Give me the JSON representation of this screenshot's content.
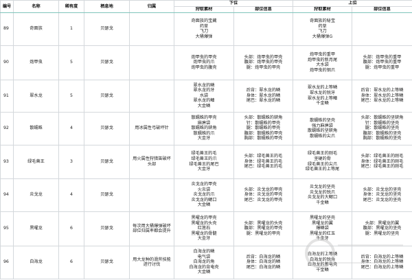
{
  "headers": {
    "id": "编号",
    "name": "名称",
    "rarity": "稀有度",
    "habitat": "栖息地",
    "note": "归属",
    "low_rank": "下位",
    "high_rank": "上位",
    "materials": "狩取素材",
    "parts": "部位信息"
  },
  "rows": [
    {
      "id": "89",
      "name": "奇面族",
      "rarity": "1",
      "habitat": "贝瑟戈",
      "note": "",
      "low_mat": [
        "奇面族的宝藏",
        "药草",
        "飞刀",
        "大桶爆弹"
      ],
      "low_parts": [],
      "high_mat": [
        "奇面族的秘宝",
        "药草",
        "飞刀",
        "大桶爆弹G"
      ],
      "high_parts": []
    },
    {
      "id": "90",
      "name": "炮甲虫",
      "rarity": "5",
      "habitat": "贝瑟戈",
      "note": "",
      "low_mat": [
        "炮甲虫的甲壳",
        "炮甲虫的爪",
        "炮甲虫的腹壳"
      ],
      "low_parts": [
        "头部：炮甲虫的甲壳",
        "腹部：炮甲虫的甲壳",
        "腿：炮甲虫的甲壳"
      ],
      "high_mat": [
        "炮甲虫的重甲",
        "炮甲虫的新月尾",
        "大水袋",
        "炮甲虫的钢爪"
      ],
      "high_parts": [
        "头部：炮甲虫的重甲",
        "腹部：炮甲虫的重甲",
        "腿：炮甲虫的重甲"
      ]
    },
    {
      "id": "91",
      "name": "翠水龙",
      "rarity": "5",
      "habitat": "贝瑟戈",
      "note": "",
      "low_mat": [
        "翠水龙的鳞",
        "翠水龙的牙",
        "水袋",
        "翠水龙的鳍",
        "大金鳞"
      ],
      "low_parts": [
        "后背：翠水龙的鳞",
        "身体：翠水龙的鳞",
        "尾巴：翠水龙的鳞"
      ],
      "high_mat": [
        "翠水龙的上等鳞",
        "翠水龙的锐牙",
        "翠水龙的上等鳍",
        "千金鳞"
      ],
      "high_parts": [
        "后背：翠水龙的上等鳞",
        "身体：翠水龙的上等鳞",
        "尾巴：翠水龙的上等鳞"
      ]
    },
    {
      "id": "92",
      "name": "散蠕蛛",
      "rarity": "4",
      "habitat": "贝瑟戈",
      "note": "用冰属性弓破坏针",
      "low_mat": [
        "散蠕蛛的甲壳",
        "麻痹袋",
        "散蠕蛛的鋏角",
        "散蠕蛛的爪",
        "大金牙"
      ],
      "low_parts": [
        "头部：散蠕蛛的鋏角",
        "针：散蠕蛛的甲壳",
        "腿：散蠕蛛的甲壳",
        "腹部：散蠕蛛的甲壳",
        "胸部：散蠕蛛的甲壳"
      ],
      "high_mat": [
        "散蠕蛛的坚壳",
        "强力麻痹袋",
        "散蠕蛛的坚鋏角",
        "散蠕蛛的尖爪"
      ],
      "high_parts": [
        "头部：散蠕蛛的坚鋏角",
        "针：散蠕蛛的坚壳",
        "腿：散蠕蛛的坚壳",
        "腹部：散蠕蛛的坚壳",
        "胸部：散蠕蛛的坚壳"
      ]
    },
    {
      "id": "93",
      "name": "绿毛兽王",
      "rarity": "3",
      "habitat": "贝瑟戈",
      "note": "用火属性狩猎笛破坏头部",
      "low_mat": [
        "绿毛兽王的毛",
        "绿毛兽王的爪",
        "绿毛兽王的尾巴",
        "大金牙"
      ],
      "low_parts": [
        "头部：绿毛兽王的毛",
        "身体：绿毛兽王的毛",
        "尾巴：绿毛兽王的毛"
      ],
      "high_mat": [
        "绿毛兽王的刚毛",
        "坚硬的骨",
        "绿毛兽王的尖爪",
        "绿毛兽王的上等尾"
      ],
      "high_parts": [
        "头部：绿毛兽王的刚毛",
        "身体：绿毛兽王的刚毛",
        "尾巴：绿毛兽王的刚毛"
      ]
    },
    {
      "id": "94",
      "name": "炎戈龙",
      "rarity": "4",
      "habitat": "贝瑟戈",
      "note": "",
      "low_mat": [
        "炎戈龙的甲壳",
        "火炎袋",
        "炎戈龙的爪",
        "炎戈龙的鳃口",
        "大金鳞"
      ],
      "low_parts": [
        "头部：炎戈龙的甲壳",
        "身体：炎戈龙的甲壳",
        "尾巴：炎戈龙的甲壳"
      ],
      "high_mat": [
        "炎戈龙的坚壳",
        "炎戈龙的锐爪",
        "炎戈龙的大鳃口",
        "千金鳞"
      ],
      "high_parts": [
        "头部：炎戈龙的坚壳",
        "身体：炎戈龙的坚壳",
        "尾巴：炎戈龙的坚壳"
      ]
    },
    {
      "id": "95",
      "name": "黑曜龙",
      "rarity": "6",
      "habitat": "贝瑟戈",
      "note": "每次用大桶爆弹破坏部位归属率都会提升",
      "low_mat": [
        "黑曜龙的甲壳",
        "黑曜龙的头壳",
        "红莲石",
        "黑曜龙的骨髓",
        "大金牙"
      ],
      "low_parts": [
        "头部：黑曜龙的头壳",
        "腹部：黑曜龙的甲壳",
        "腿：黑曜龙的甲壳"
      ],
      "high_mat": [
        "黑曜龙的坚壳",
        "黑曜龙的翼",
        "爆鳞袋",
        "黑曜龙的红玉",
        "千金牙"
      ],
      "high_parts": [
        "头部：黑曜龙的翼",
        "腹部：黑曜龙的坚壳",
        "腿：黑曜龙的坚壳"
      ]
    },
    {
      "id": "96",
      "name": "白海龙",
      "rarity": "6",
      "habitat": "贝瑟戈",
      "note": "用大龙种的滑斧技能进行讨伐",
      "low_mat": [
        "白海龙的鳞",
        "电气袋",
        "白海龙的角",
        "白海龙的背电壳",
        "大金鳞"
      ],
      "low_parts": [
        "后背：白海龙的鳞",
        "身体：白海龙的鳞",
        "尾巴：白海龙的鳞"
      ],
      "high_mat": [
        "白海龙的上等鳞",
        "白海龙的锐角",
        "白海龙的蓄电壳",
        "千金鳞"
      ],
      "high_parts": [
        "后背：白海龙的上等鳞",
        "身体：白海龙的上等鳞",
        "尾巴：白海龙的上等鳞"
      ]
    }
  ],
  "watermark": {
    "brand": "07073游戏网",
    "url": "www.07073.com"
  },
  "colors": {
    "grid": "#d4d8dc",
    "header_rule": "#7fc4bb"
  }
}
